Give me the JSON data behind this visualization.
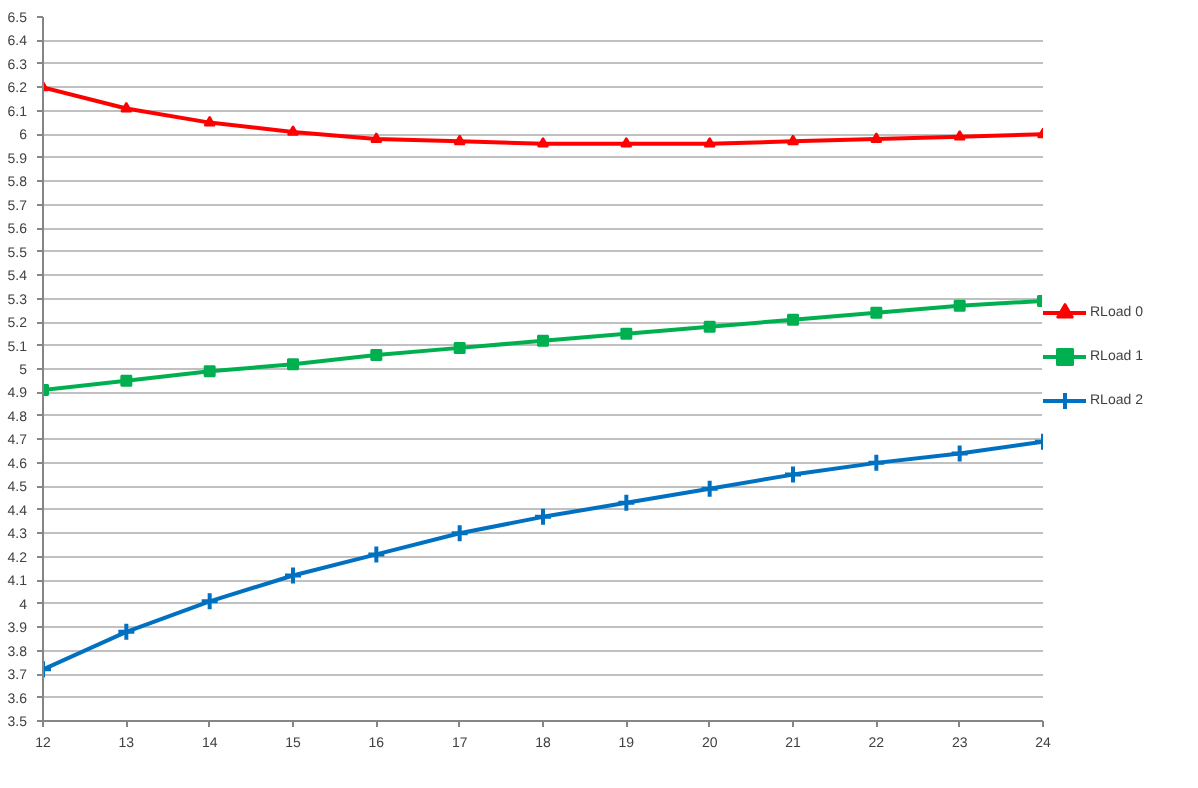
{
  "chart_data": {
    "type": "line",
    "x": [
      12,
      13,
      14,
      15,
      16,
      17,
      18,
      19,
      20,
      21,
      22,
      23,
      24
    ],
    "series": [
      {
        "name": "RLoad 0",
        "color": "#ff0000",
        "marker": "triangle",
        "values": [
          6.2,
          6.11,
          6.05,
          6.01,
          5.98,
          5.97,
          5.96,
          5.96,
          5.96,
          5.97,
          5.98,
          5.99,
          6.0
        ]
      },
      {
        "name": "RLoad 1",
        "color": "#00b050",
        "marker": "square",
        "values": [
          4.91,
          4.95,
          4.99,
          5.02,
          5.06,
          5.09,
          5.12,
          5.15,
          5.18,
          5.21,
          5.24,
          5.27,
          5.29
        ]
      },
      {
        "name": "RLoad 2",
        "color": "#0070c0",
        "marker": "cross",
        "values": [
          3.72,
          3.88,
          4.01,
          4.12,
          4.21,
          4.3,
          4.37,
          4.43,
          4.49,
          4.55,
          4.6,
          4.64,
          4.69
        ]
      }
    ],
    "xlim": [
      12,
      24
    ],
    "xticks": [
      12,
      13,
      14,
      15,
      16,
      17,
      18,
      19,
      20,
      21,
      22,
      23,
      24
    ],
    "ylim": [
      3.5,
      6.5
    ],
    "yticks": [
      3.5,
      3.6,
      3.7,
      3.8,
      3.9,
      4,
      4.1,
      4.2,
      4.3,
      4.4,
      4.5,
      4.6,
      4.7,
      4.8,
      4.9,
      5,
      5.1,
      5.2,
      5.3,
      5.4,
      5.5,
      5.6,
      5.7,
      5.8,
      5.9,
      6,
      6.1,
      6.2,
      6.3,
      6.4,
      6.5
    ],
    "grid": "y",
    "legend": "right",
    "line_style": "solid"
  }
}
